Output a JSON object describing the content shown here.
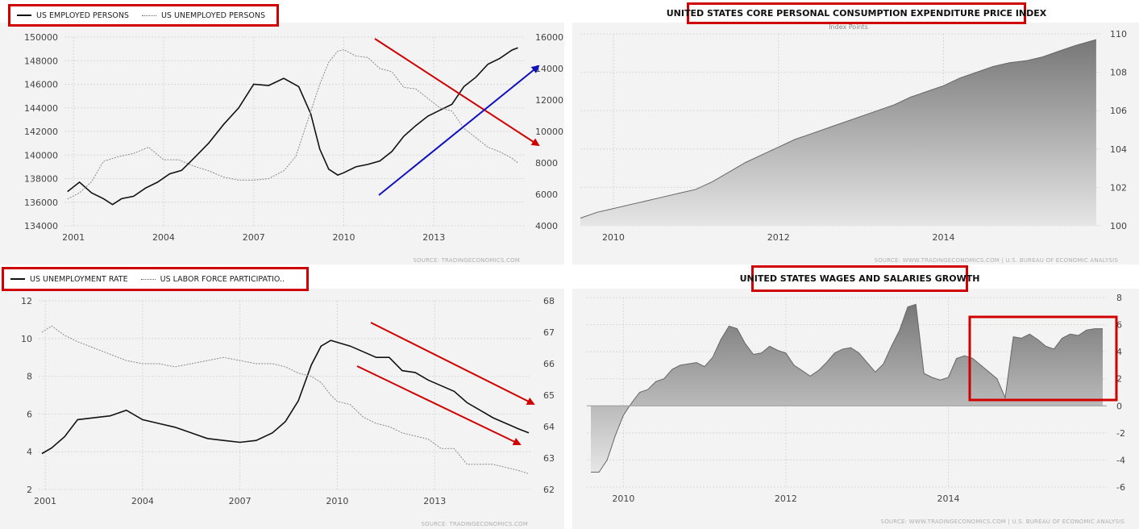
{
  "colors": {
    "panel_bg": "#f3f3f3",
    "grid": "#d8d8d8",
    "primary_line": "#111111",
    "secondary_line": "#8a8a8a",
    "annotation_red": "#d00000",
    "annotation_blue": "#1010c0",
    "area_top": "#777777",
    "area_bottom": "#e6e6e6"
  },
  "chart_data": [
    {
      "id": "employment",
      "type": "line",
      "legend": [
        "US EMPLOYED PERSONS",
        "US UNEMPLOYED PERSONS"
      ],
      "source": "SOURCE: TRADINGECONOMICS.COM",
      "x_ticks": [
        "2001",
        "2004",
        "2007",
        "2010",
        "2013"
      ],
      "y_left_ticks": [
        "134000",
        "136000",
        "138000",
        "140000",
        "142000",
        "144000",
        "146000",
        "148000",
        "150000"
      ],
      "y_right_ticks": [
        "4000",
        "6000",
        "8000",
        "10000",
        "12000",
        "14000",
        "16000"
      ],
      "y_left_range": [
        134000,
        150000
      ],
      "y_right_range": [
        4000,
        16000
      ],
      "x_range": [
        2000.7,
        2016.0
      ],
      "series": [
        {
          "name": "US EMPLOYED PERSONS",
          "axis": "left",
          "x": [
            2000.8,
            2001.2,
            2001.6,
            2002.0,
            2002.3,
            2002.6,
            2003.0,
            2003.4,
            2003.8,
            2004.2,
            2004.6,
            2005.0,
            2005.5,
            2006.0,
            2006.5,
            2007.0,
            2007.5,
            2008.0,
            2008.5,
            2008.9,
            2009.2,
            2009.5,
            2009.8,
            2010.0,
            2010.4,
            2010.8,
            2011.2,
            2011.6,
            2012.0,
            2012.4,
            2012.8,
            2013.2,
            2013.6,
            2014.0,
            2014.4,
            2014.8,
            2015.2,
            2015.6,
            2015.8
          ],
          "y": [
            136900,
            137700,
            136800,
            136300,
            135800,
            136300,
            136500,
            137200,
            137700,
            138400,
            138700,
            139700,
            141000,
            142600,
            144000,
            146000,
            145900,
            146500,
            145800,
            143500,
            140500,
            138800,
            138300,
            138500,
            139000,
            139200,
            139500,
            140300,
            141600,
            142500,
            143300,
            143800,
            144300,
            145800,
            146600,
            147700,
            148200,
            148900,
            149100
          ]
        },
        {
          "name": "US UNEMPLOYED PERSONS",
          "axis": "right",
          "x": [
            2000.8,
            2001.2,
            2001.6,
            2002.0,
            2002.5,
            2003.0,
            2003.5,
            2004.0,
            2004.5,
            2005.0,
            2005.5,
            2006.0,
            2006.5,
            2007.0,
            2007.5,
            2008.0,
            2008.4,
            2008.8,
            2009.2,
            2009.5,
            2009.8,
            2010.0,
            2010.4,
            2010.8,
            2011.2,
            2011.6,
            2012.0,
            2012.4,
            2012.8,
            2013.2,
            2013.6,
            2014.0,
            2014.4,
            2014.8,
            2015.2,
            2015.6,
            2015.8
          ],
          "y": [
            5700,
            6100,
            6800,
            8100,
            8400,
            8600,
            9000,
            8200,
            8200,
            7800,
            7500,
            7100,
            6900,
            6900,
            7000,
            7500,
            8400,
            10700,
            13000,
            14400,
            15100,
            15200,
            14800,
            14700,
            14000,
            13800,
            12800,
            12700,
            12100,
            11500,
            11300,
            10200,
            9600,
            9000,
            8700,
            8300,
            8000
          ]
        }
      ]
    },
    {
      "id": "pce",
      "type": "area",
      "title": "UNITED STATES CORE PERSONAL CONSUMPTION EXPENDITURE PRICE INDEX",
      "subtitle": "Index Points",
      "source": "SOURCE: WWW.TRADINGECONOMICS.COM  |  U.S. BUREAU OF ECONOMIC ANALYSIS",
      "x_ticks": [
        "2010",
        "2012",
        "2014"
      ],
      "y_ticks": [
        "100",
        "102",
        "104",
        "106",
        "108",
        "110"
      ],
      "y_range": [
        100,
        110
      ],
      "x_range": [
        2009.6,
        2015.9
      ],
      "x": [
        2009.6,
        2009.8,
        2010.0,
        2010.2,
        2010.4,
        2010.6,
        2010.8,
        2011.0,
        2011.2,
        2011.4,
        2011.6,
        2011.8,
        2012.0,
        2012.2,
        2012.4,
        2012.6,
        2012.8,
        2013.0,
        2013.2,
        2013.4,
        2013.6,
        2013.8,
        2014.0,
        2014.2,
        2014.4,
        2014.6,
        2014.8,
        2015.0,
        2015.2,
        2015.4,
        2015.6,
        2015.85
      ],
      "values": [
        100.4,
        100.7,
        100.9,
        101.1,
        101.3,
        101.5,
        101.7,
        101.9,
        102.3,
        102.8,
        103.3,
        103.7,
        104.1,
        104.5,
        104.8,
        105.1,
        105.4,
        105.7,
        106.0,
        106.3,
        106.7,
        107.0,
        107.3,
        107.7,
        108.0,
        108.3,
        108.5,
        108.6,
        108.8,
        109.1,
        109.4,
        109.7
      ]
    },
    {
      "id": "unemployment",
      "type": "line",
      "legend": [
        "US UNEMPLOYMENT RATE",
        "US LABOR FORCE PARTICIPATIO.."
      ],
      "source": "SOURCE: TRADINGECONOMICS.COM",
      "x_ticks": [
        "2001",
        "2004",
        "2007",
        "2010",
        "2013"
      ],
      "y_left_ticks": [
        "2",
        "4",
        "6",
        "8",
        "10",
        "12"
      ],
      "y_right_ticks": [
        "62",
        "63",
        "64",
        "65",
        "66",
        "67",
        "68"
      ],
      "y_left_range": [
        2,
        12
      ],
      "y_right_range": [
        62,
        68
      ],
      "x_range": [
        2000.8,
        2016.0
      ],
      "series": [
        {
          "name": "US UNEMPLOYMENT RATE",
          "axis": "left",
          "x": [
            2000.9,
            2001.2,
            2001.6,
            2002.0,
            2002.5,
            2003.0,
            2003.5,
            2004.0,
            2004.5,
            2005.0,
            2005.5,
            2006.0,
            2006.5,
            2007.0,
            2007.5,
            2008.0,
            2008.4,
            2008.8,
            2009.2,
            2009.5,
            2009.8,
            2010.0,
            2010.4,
            2010.8,
            2011.2,
            2011.6,
            2012.0,
            2012.4,
            2012.8,
            2013.2,
            2013.6,
            2014.0,
            2014.4,
            2014.8,
            2015.2,
            2015.6,
            2015.9
          ],
          "y": [
            3.9,
            4.2,
            4.8,
            5.7,
            5.8,
            5.9,
            6.2,
            5.7,
            5.5,
            5.3,
            5.0,
            4.7,
            4.6,
            4.5,
            4.6,
            5.0,
            5.6,
            6.7,
            8.6,
            9.6,
            9.9,
            9.8,
            9.6,
            9.3,
            9.0,
            9.0,
            8.3,
            8.2,
            7.8,
            7.5,
            7.2,
            6.6,
            6.2,
            5.8,
            5.5,
            5.2,
            5.0
          ]
        },
        {
          "name": "US LABOR FORCE PARTICIPATIO..",
          "axis": "right",
          "x": [
            2000.9,
            2001.2,
            2001.6,
            2002.0,
            2002.5,
            2003.0,
            2003.5,
            2004.0,
            2004.5,
            2005.0,
            2005.5,
            2006.0,
            2006.5,
            2007.0,
            2007.5,
            2008.0,
            2008.4,
            2008.8,
            2009.2,
            2009.5,
            2009.8,
            2010.0,
            2010.4,
            2010.8,
            2011.2,
            2011.6,
            2012.0,
            2012.4,
            2012.8,
            2013.2,
            2013.6,
            2014.0,
            2014.4,
            2014.8,
            2015.2,
            2015.6,
            2015.9
          ],
          "y": [
            67.0,
            67.2,
            66.9,
            66.7,
            66.5,
            66.3,
            66.1,
            66.0,
            66.0,
            65.9,
            66.0,
            66.1,
            66.2,
            66.1,
            66.0,
            66.0,
            65.9,
            65.7,
            65.6,
            65.4,
            65.0,
            64.8,
            64.7,
            64.3,
            64.1,
            64.0,
            63.8,
            63.7,
            63.6,
            63.3,
            63.3,
            62.8,
            62.8,
            62.8,
            62.7,
            62.6,
            62.5
          ]
        }
      ]
    },
    {
      "id": "wages",
      "type": "area",
      "title": "UNITED STATES WAGES AND SALARIES  GROWTH",
      "source": "SOURCE: WWW.TRADINGECONOMICS.COM  |  U.S. BUREAU OF ECONOMIC ANALYSIS",
      "x_ticks": [
        "2010",
        "2012",
        "2014"
      ],
      "y_ticks": [
        "-6",
        "-4",
        "-2",
        "0",
        "2",
        "4",
        "6",
        "8"
      ],
      "y_range": [
        -6,
        8
      ],
      "x_range": [
        2009.55,
        2015.95
      ],
      "x": [
        2009.6,
        2009.7,
        2009.8,
        2009.9,
        2010.0,
        2010.1,
        2010.2,
        2010.3,
        2010.4,
        2010.5,
        2010.6,
        2010.7,
        2010.8,
        2010.9,
        2011.0,
        2011.1,
        2011.2,
        2011.3,
        2011.4,
        2011.5,
        2011.6,
        2011.7,
        2011.8,
        2011.9,
        2012.0,
        2012.1,
        2012.2,
        2012.3,
        2012.4,
        2012.5,
        2012.6,
        2012.7,
        2012.8,
        2012.9,
        2013.0,
        2013.1,
        2013.2,
        2013.3,
        2013.4,
        2013.5,
        2013.6,
        2013.7,
        2013.8,
        2013.9,
        2014.0,
        2014.1,
        2014.2,
        2014.3,
        2014.4,
        2014.5,
        2014.6,
        2014.7,
        2014.8,
        2014.9,
        2015.0,
        2015.1,
        2015.2,
        2015.3,
        2015.4,
        2015.5,
        2015.6,
        2015.7,
        2015.8,
        2015.9
      ],
      "values": [
        -4.9,
        -4.9,
        -4.0,
        -2.2,
        -0.7,
        0.2,
        1.0,
        1.2,
        1.8,
        2.0,
        2.7,
        3.0,
        3.1,
        3.2,
        2.9,
        3.6,
        4.9,
        5.9,
        5.7,
        4.6,
        3.8,
        3.9,
        4.4,
        4.1,
        3.9,
        3.0,
        2.6,
        2.2,
        2.6,
        3.2,
        3.9,
        4.2,
        4.3,
        3.9,
        3.2,
        2.5,
        3.1,
        4.4,
        5.6,
        7.3,
        7.5,
        2.4,
        2.1,
        1.9,
        2.1,
        3.5,
        3.7,
        3.5,
        3.0,
        2.5,
        2.0,
        0.6,
        5.1,
        5.0,
        5.3,
        4.9,
        4.4,
        4.2,
        5.0,
        5.3,
        5.2,
        5.6,
        5.7,
        5.7
      ]
    }
  ]
}
